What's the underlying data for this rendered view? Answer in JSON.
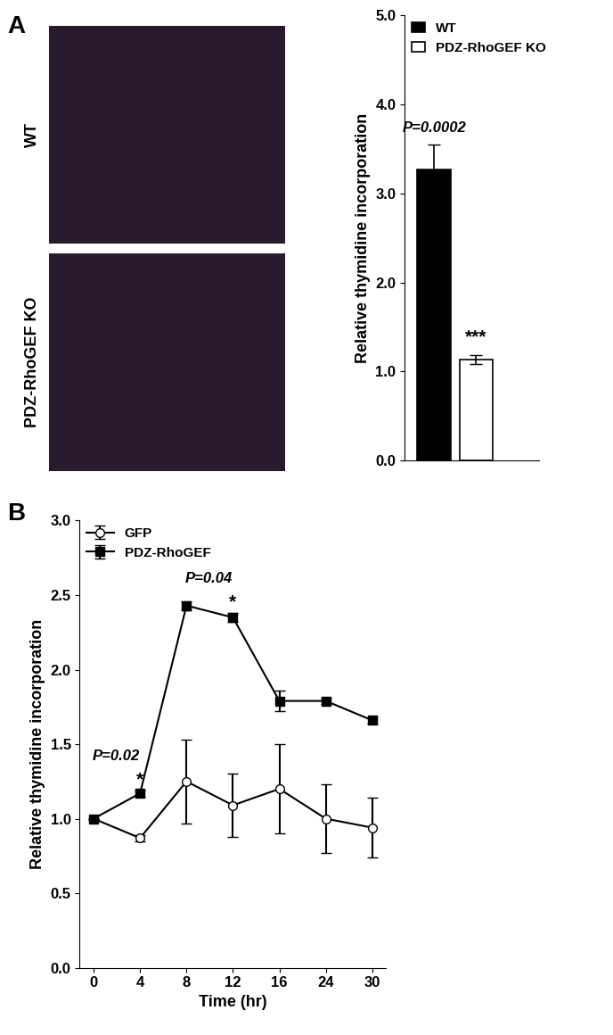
{
  "panel_labels": [
    "A",
    "B"
  ],
  "image_labels": [
    "WT",
    "PDZ-RhoGEF KO"
  ],
  "chart_data": [
    {
      "type": "bar",
      "categories": [
        null
      ],
      "series": [
        {
          "name": "WT",
          "color": "#000000",
          "values": [
            3.27
          ],
          "error": [
            0.28
          ]
        },
        {
          "name": "PDZ-RhoGEF KO",
          "color": "#ffffff",
          "values": [
            1.13
          ],
          "error": [
            0.05
          ]
        }
      ],
      "y_label": "Relative thymidine incorporation",
      "ylim": [
        0,
        5
      ],
      "yticks": [
        {
          "value": 0,
          "label": "0.0"
        },
        {
          "value": 1,
          "label": "1.0"
        },
        {
          "value": 2,
          "label": "2.0"
        },
        {
          "value": 3,
          "label": "3.0"
        },
        {
          "value": 4,
          "label": "4.0"
        },
        {
          "value": 5,
          "label": "5.0"
        }
      ],
      "annotations": [
        {
          "text": "P=0.0002",
          "at": "WT"
        },
        {
          "text": "***",
          "at": "PDZ-RhoGEF KO"
        }
      ],
      "legend": "upper left",
      "tick_labels": "y",
      "grid": false
    },
    {
      "type": "line",
      "categories": [
        "0",
        "4",
        "8",
        "12",
        "16",
        "24",
        "30"
      ],
      "series": [
        {
          "name": "GFP",
          "color": "#000000",
          "marker": "o",
          "line_style": "solid",
          "values": [
            1.0,
            0.87,
            1.25,
            1.09,
            1.2,
            1.0,
            0.94
          ],
          "error": [
            0,
            0.02,
            0.28,
            0.21,
            0.3,
            0.23,
            0.2
          ]
        },
        {
          "name": "PDZ-RhoGEF",
          "color": "#000000",
          "marker": "s",
          "line_style": "solid",
          "values": [
            1.0,
            1.17,
            2.43,
            2.35,
            1.79,
            1.79,
            1.66
          ],
          "error": [
            0,
            0.02,
            0.03,
            0.03,
            0.07,
            0.02,
            0.02
          ]
        }
      ],
      "x_label": "Time (hr)",
      "y_label": "Relative thymidine incorporation",
      "ylim": [
        0,
        3
      ],
      "yticks": [
        {
          "value": 0,
          "label": "0.0"
        },
        {
          "value": 0.5,
          "label": "0.5"
        },
        {
          "value": 1,
          "label": "1.0"
        },
        {
          "value": 1.5,
          "label": "1.5"
        },
        {
          "value": 2,
          "label": "2.0"
        },
        {
          "value": 2.5,
          "label": "2.5"
        },
        {
          "value": 3,
          "label": "3.0"
        }
      ],
      "annotations": [
        {
          "text": "P=0.02",
          "at": "4",
          "series": "PDZ-RhoGEF"
        },
        {
          "text": "*",
          "at": "4",
          "series": "PDZ-RhoGEF"
        },
        {
          "text": "P=0.04",
          "at": "12",
          "series": "PDZ-RhoGEF"
        },
        {
          "text": "*",
          "at": "12",
          "series": "PDZ-RhoGEF"
        }
      ],
      "legend": "upper left",
      "grid": false
    }
  ]
}
